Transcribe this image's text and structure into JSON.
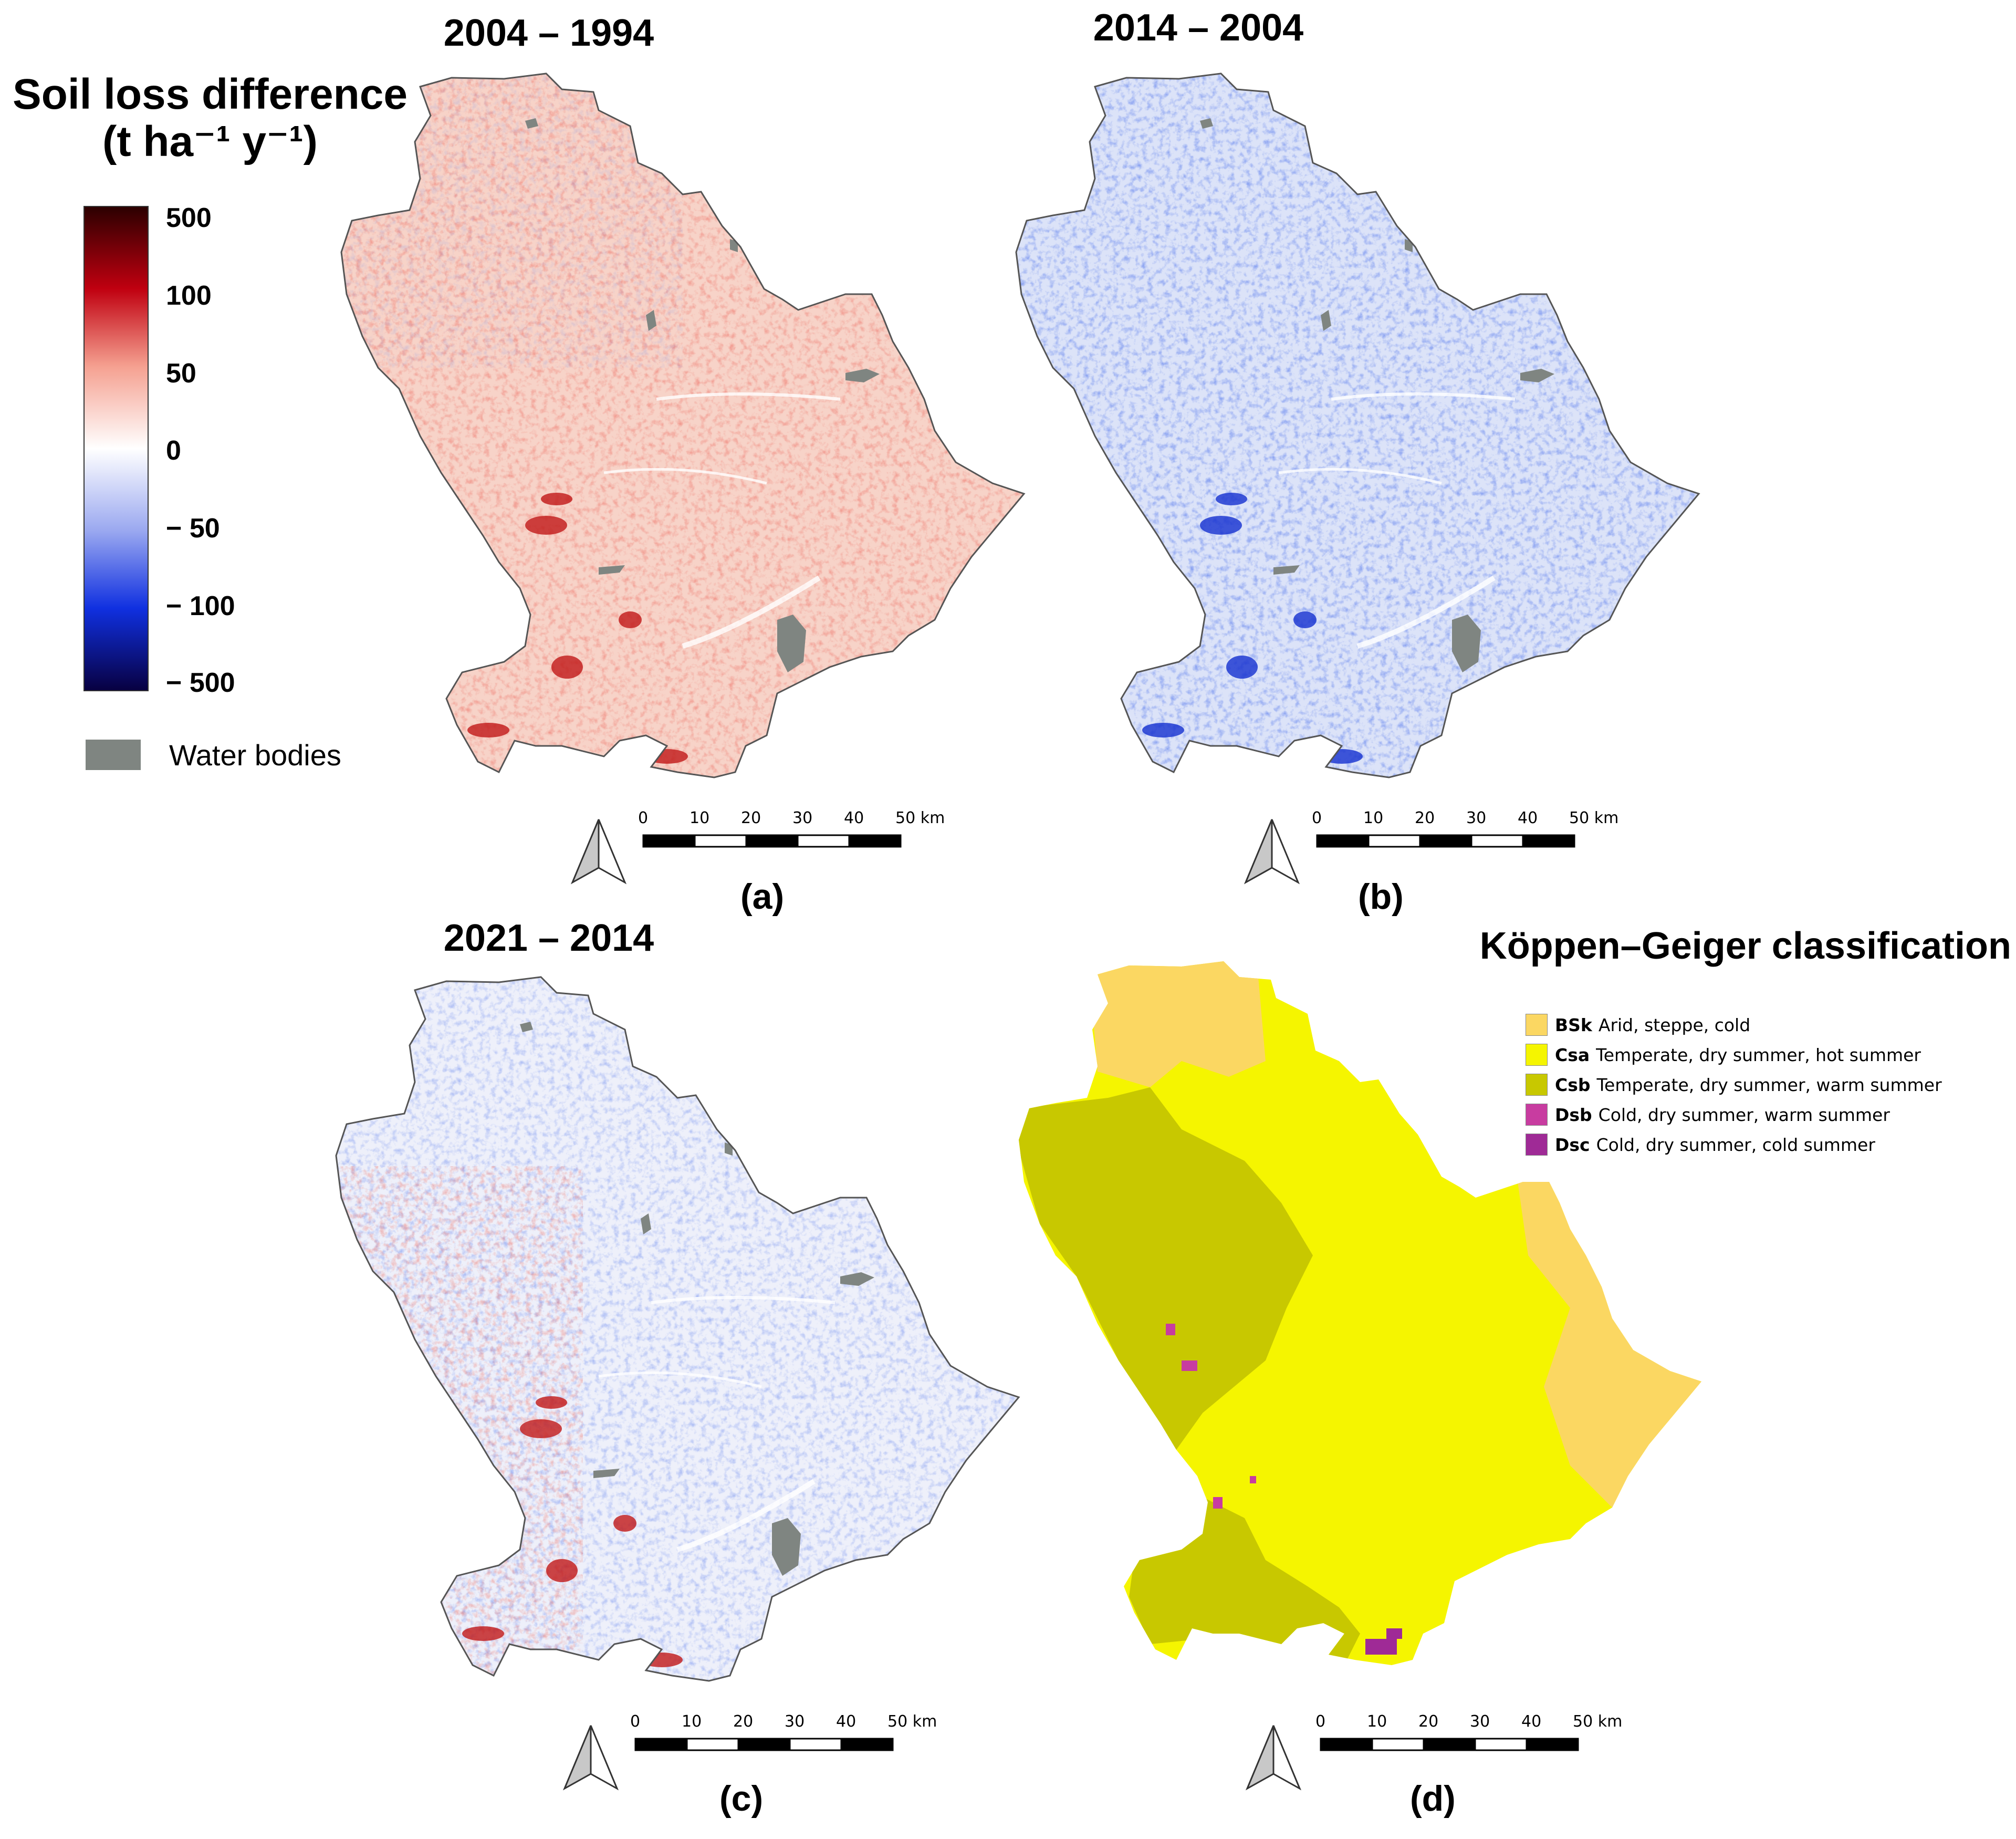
{
  "panels": [
    {
      "title": "2004 – 1994",
      "label": "(a)",
      "trend": "increase"
    },
    {
      "title": "2014 – 2004",
      "label": "(b)",
      "trend": "decrease"
    },
    {
      "title": "2021 – 2014",
      "label": "(c)",
      "trend": "mixed"
    },
    {
      "title": "",
      "label": "(d)",
      "trend": "classification"
    }
  ],
  "legend": {
    "title_line1": "Soil loss difference",
    "title_line2": "(t ha⁻¹ y⁻¹)",
    "ticks": [
      "500",
      "100",
      "50",
      "0",
      "− 50",
      "− 100",
      "− 500"
    ],
    "water_label": "Water bodies",
    "water_color": "#7f8581",
    "colors": [
      "#2b0000",
      "#c00010",
      "#f5a090",
      "#ffffff",
      "#9aa8f0",
      "#1030e0",
      "#080040"
    ]
  },
  "scalebar": {
    "labels": [
      "0",
      "10",
      "20",
      "30",
      "40",
      "50 km"
    ]
  },
  "koppen": {
    "title": "Köppen–Geiger classification",
    "items": [
      {
        "code": "BSk",
        "desc": "Arid, steppe, cold",
        "color": "#fbd762"
      },
      {
        "code": "Csa",
        "desc": "Temperate, dry summer, hot summer",
        "color": "#f5f500"
      },
      {
        "code": "Csb",
        "desc": "Temperate, dry summer, warm summer",
        "color": "#c8c800"
      },
      {
        "code": "Dsb",
        "desc": "Cold, dry summer, warm summer",
        "color": "#c83ca0"
      },
      {
        "code": "Dsc",
        "desc": "Cold, dry summer, cold summer",
        "color": "#9f2a96"
      }
    ]
  }
}
